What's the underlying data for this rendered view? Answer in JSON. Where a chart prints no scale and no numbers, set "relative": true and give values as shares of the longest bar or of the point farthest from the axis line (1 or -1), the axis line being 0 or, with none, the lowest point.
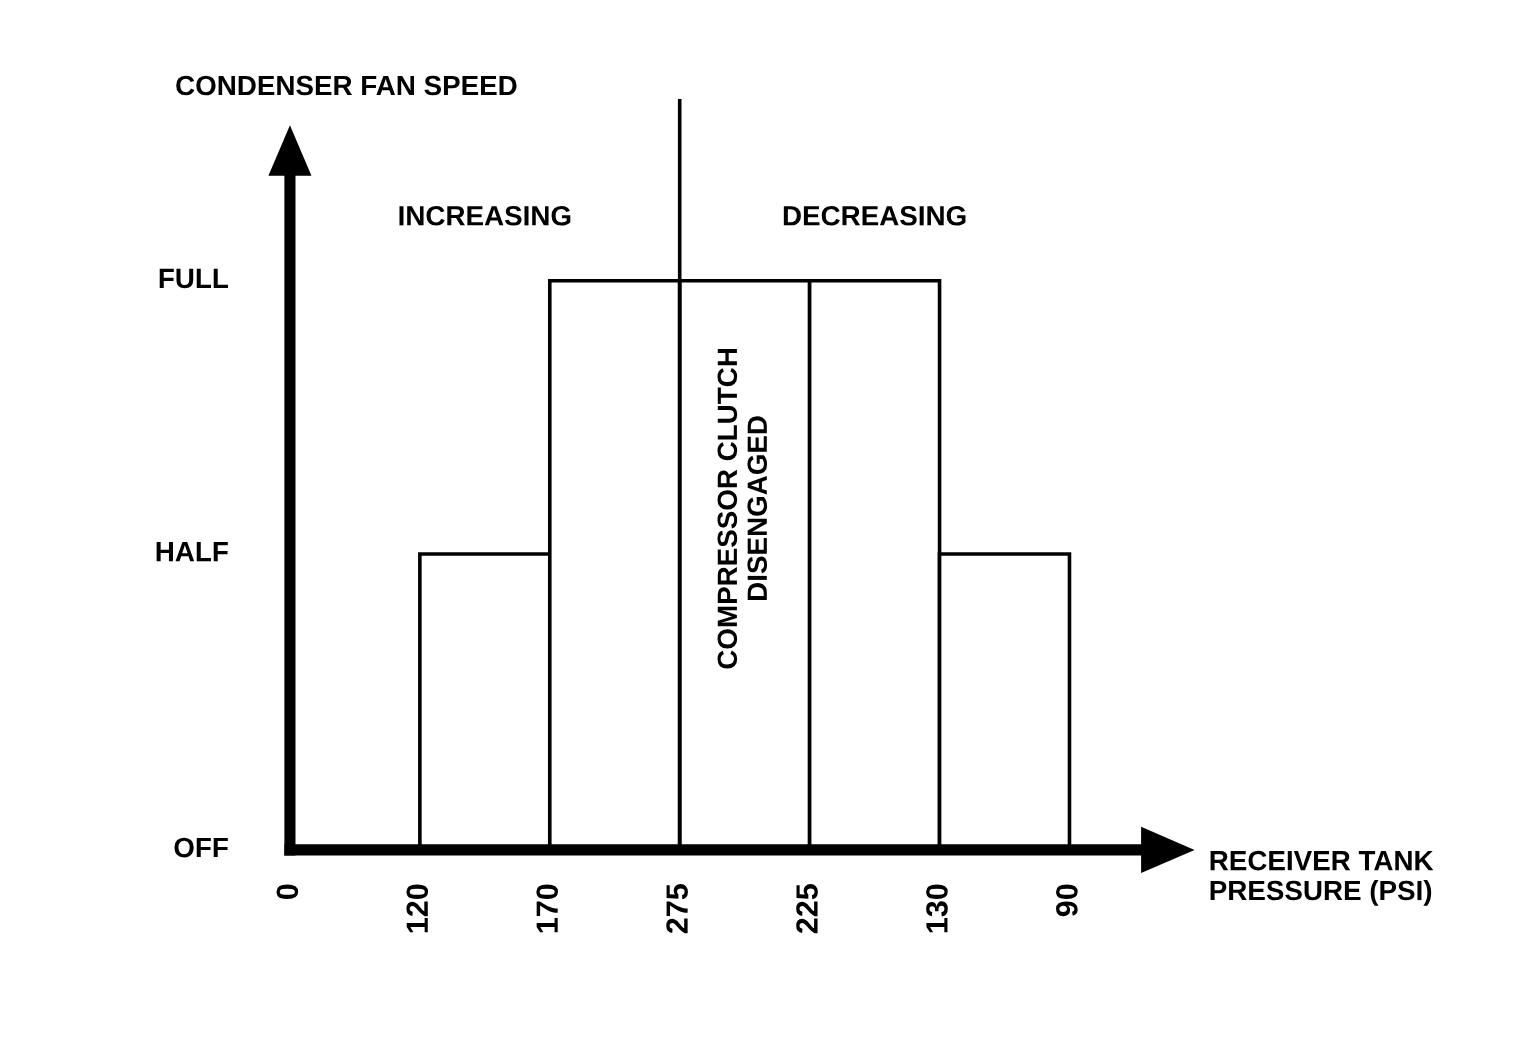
{
  "chart_data": {
    "type": "bar",
    "relative": true,
    "categories": [
      null,
      null,
      null,
      null,
      null
    ],
    "values": [
      0.52,
      1,
      1,
      1,
      0.52
    ],
    "color": "#ffffff",
    "annotations": [
      "CONDENSER FAN SPEED",
      "RECEIVER TANK\nPRESSURE (PSI)",
      "OFF",
      "HALF",
      "FULL",
      "0",
      "120",
      "170",
      "275",
      "225",
      "130",
      "90",
      "INCREASING",
      "DECREASING",
      "COMPRESSOR CLUTCH\nDISENGAGED"
    ],
    "grid": false
  }
}
